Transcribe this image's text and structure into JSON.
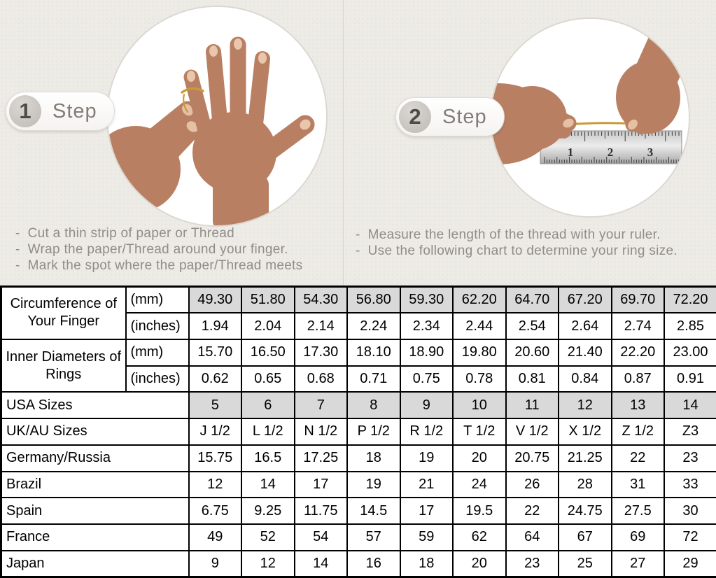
{
  "page": {
    "background_color": "#edebe6",
    "table_shaded_color": "#d9d9d9",
    "thread_color": "#c79b3b",
    "skin_color": "#b97f62"
  },
  "steps": [
    {
      "number": "1",
      "label": "Step",
      "illustration": "hand-with-thread-around-finger",
      "instructions": [
        "Cut a thin strip of paper or Thread",
        "Wrap the paper/Thread around your finger.",
        "Mark the spot where the paper/Thread meets"
      ]
    },
    {
      "number": "2",
      "label": "Step",
      "illustration": "measuring-thread-with-ruler",
      "ruler_numbers": [
        "1",
        "2",
        "3"
      ],
      "instructions": [
        "Measure the length of the thread with your ruler.",
        "Use the following chart to determine your ring size."
      ]
    }
  ],
  "chart_data": {
    "type": "table",
    "row_groups": [
      {
        "label": "Circumference of Your Finger",
        "rows": [
          {
            "unit": "(mm)",
            "shaded": true,
            "values": [
              "49.30",
              "51.80",
              "54.30",
              "56.80",
              "59.30",
              "62.20",
              "64.70",
              "67.20",
              "69.70",
              "72.20"
            ]
          },
          {
            "unit": "(inches)",
            "shaded": false,
            "values": [
              "1.94",
              "2.04",
              "2.14",
              "2.24",
              "2.34",
              "2.44",
              "2.54",
              "2.64",
              "2.74",
              "2.85"
            ]
          }
        ]
      },
      {
        "label": "Inner Diameters of Rings",
        "rows": [
          {
            "unit": "(mm)",
            "shaded": false,
            "values": [
              "15.70",
              "16.50",
              "17.30",
              "18.10",
              "18.90",
              "19.80",
              "20.60",
              "21.40",
              "22.20",
              "23.00"
            ]
          },
          {
            "unit": "(inches)",
            "shaded": false,
            "values": [
              "0.62",
              "0.65",
              "0.68",
              "0.71",
              "0.75",
              "0.78",
              "0.81",
              "0.84",
              "0.87",
              "0.91"
            ]
          }
        ]
      }
    ],
    "size_rows": [
      {
        "label": "USA Sizes",
        "shaded": true,
        "values": [
          "5",
          "6",
          "7",
          "8",
          "9",
          "10",
          "11",
          "12",
          "13",
          "14"
        ]
      },
      {
        "label": "UK/AU Sizes",
        "shaded": false,
        "values": [
          "J 1/2",
          "L 1/2",
          "N 1/2",
          "P 1/2",
          "R 1/2",
          "T 1/2",
          "V 1/2",
          "X 1/2",
          "Z 1/2",
          "Z3"
        ]
      },
      {
        "label": "Germany/Russia",
        "shaded": false,
        "values": [
          "15.75",
          "16.5",
          "17.25",
          "18",
          "19",
          "20",
          "20.75",
          "21.25",
          "22",
          "23"
        ]
      },
      {
        "label": "Brazil",
        "shaded": false,
        "values": [
          "12",
          "14",
          "17",
          "19",
          "21",
          "24",
          "26",
          "28",
          "31",
          "33"
        ]
      },
      {
        "label": "Spain",
        "shaded": false,
        "values": [
          "6.75",
          "9.25",
          "11.75",
          "14.5",
          "17",
          "19.5",
          "22",
          "24.75",
          "27.5",
          "30"
        ]
      },
      {
        "label": "France",
        "shaded": false,
        "values": [
          "49",
          "52",
          "54",
          "57",
          "59",
          "62",
          "64",
          "67",
          "69",
          "72"
        ]
      },
      {
        "label": "Japan",
        "shaded": false,
        "values": [
          "9",
          "12",
          "14",
          "16",
          "18",
          "20",
          "23",
          "25",
          "27",
          "29"
        ]
      }
    ]
  }
}
